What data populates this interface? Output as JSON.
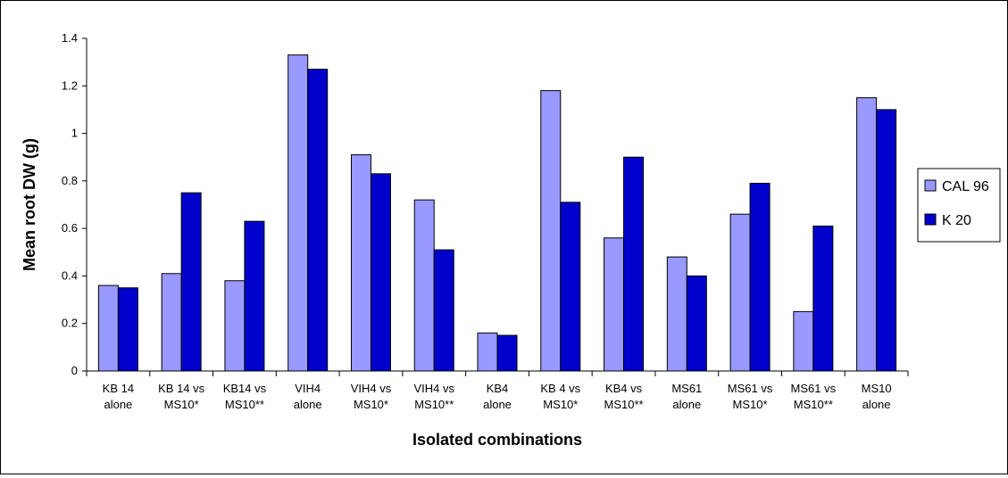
{
  "chart_data": {
    "type": "bar",
    "title": "",
    "xlabel": "Isolated combinations",
    "ylabel": "Mean root DW (g)",
    "ylim": [
      0,
      1.4
    ],
    "yticks": [
      "0",
      "0.2",
      "0.4",
      "0.6",
      "0.8",
      "1",
      "1.2",
      "1.4"
    ],
    "ytick_values": [
      0,
      0.2,
      0.4,
      0.6,
      0.8,
      1.0,
      1.2,
      1.4
    ],
    "grid": false,
    "legend_position": "right",
    "categories": [
      [
        "KB 14",
        "alone"
      ],
      [
        "KB 14 vs",
        "MS10*"
      ],
      [
        "KB14 vs",
        "MS10**"
      ],
      [
        "VIH4",
        "alone"
      ],
      [
        "VIH4 vs",
        "MS10*"
      ],
      [
        "VIH4 vs",
        "MS10**"
      ],
      [
        "KB4",
        "alone"
      ],
      [
        "KB 4 vs",
        "MS10*"
      ],
      [
        "KB4 vs",
        "MS10**"
      ],
      [
        "MS61",
        "alone"
      ],
      [
        "MS61 vs",
        "MS10*"
      ],
      [
        "MS61 vs",
        "MS10**"
      ],
      [
        "MS10",
        "alone"
      ]
    ],
    "series": [
      {
        "name": "CAL 96",
        "color": "#9999ff",
        "values": [
          0.36,
          0.41,
          0.38,
          1.33,
          0.91,
          0.72,
          0.16,
          1.18,
          0.56,
          0.48,
          0.66,
          0.25,
          1.15
        ]
      },
      {
        "name": "K 20",
        "color": "#0000cc",
        "values": [
          0.35,
          0.75,
          0.63,
          1.27,
          0.83,
          0.51,
          0.15,
          0.71,
          0.9,
          0.4,
          0.79,
          0.61,
          1.1
        ]
      }
    ]
  }
}
